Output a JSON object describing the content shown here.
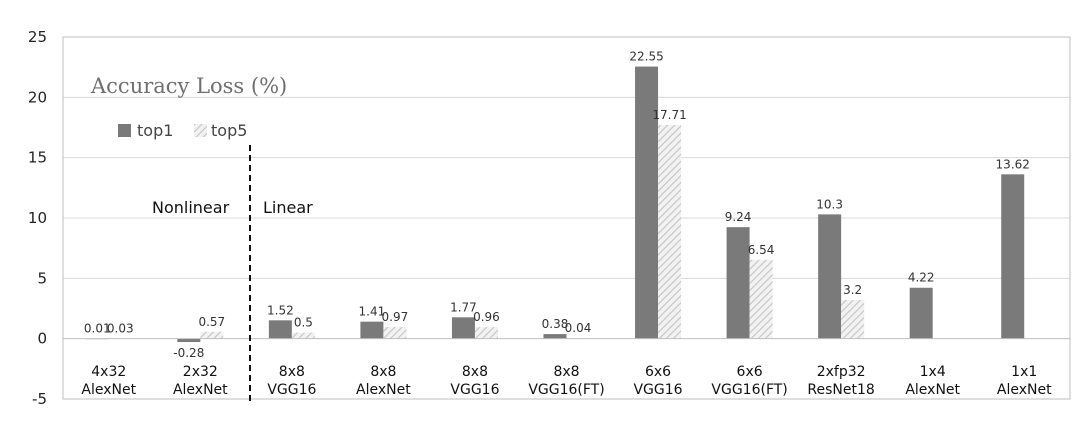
{
  "chart_data": {
    "type": "bar",
    "title": "Accuracy Loss (%)",
    "categories": [
      [
        "4x32",
        "AlexNet"
      ],
      [
        "2x32",
        "AlexNet"
      ],
      [
        "8x8",
        "VGG16"
      ],
      [
        "8x8",
        "AlexNet"
      ],
      [
        "8x8",
        "VGG16"
      ],
      [
        "8x8",
        "VGG16(FT)"
      ],
      [
        "6x6",
        "VGG16"
      ],
      [
        "6x6",
        "VGG16(FT)"
      ],
      [
        "2xfp32",
        "ResNet18"
      ],
      [
        "1x4",
        "AlexNet"
      ],
      [
        "1x1",
        "AlexNet"
      ]
    ],
    "series": [
      {
        "name": "top1",
        "values": [
          0.01,
          -0.28,
          1.52,
          1.41,
          1.77,
          0.38,
          22.55,
          9.24,
          10.3,
          4.22,
          13.62
        ],
        "labels": [
          "0.01",
          "-0.28",
          "1.52",
          "1.41",
          "1.77",
          "0.38",
          "22.55",
          "9.24",
          "10.3",
          "4.22",
          "13.62"
        ]
      },
      {
        "name": "top5",
        "values": [
          0.03,
          0.57,
          0.5,
          0.97,
          0.96,
          0.04,
          17.71,
          6.54,
          3.2,
          null,
          null
        ],
        "labels": [
          "0.03",
          "0.57",
          "0.5",
          "0.97",
          "0.96",
          "0.04",
          "17.71",
          "6.54",
          "3.2",
          "",
          ""
        ]
      }
    ],
    "ylim": [
      -5,
      25
    ],
    "yticks": [
      -5,
      0,
      5,
      10,
      15,
      20,
      25
    ],
    "grid": true,
    "legend": "top-left",
    "annotations": [
      "Nonlinear",
      "Linear"
    ],
    "colors": {
      "top1": "#7a7a7a",
      "top5_hatch": "#c8c8c8"
    }
  }
}
